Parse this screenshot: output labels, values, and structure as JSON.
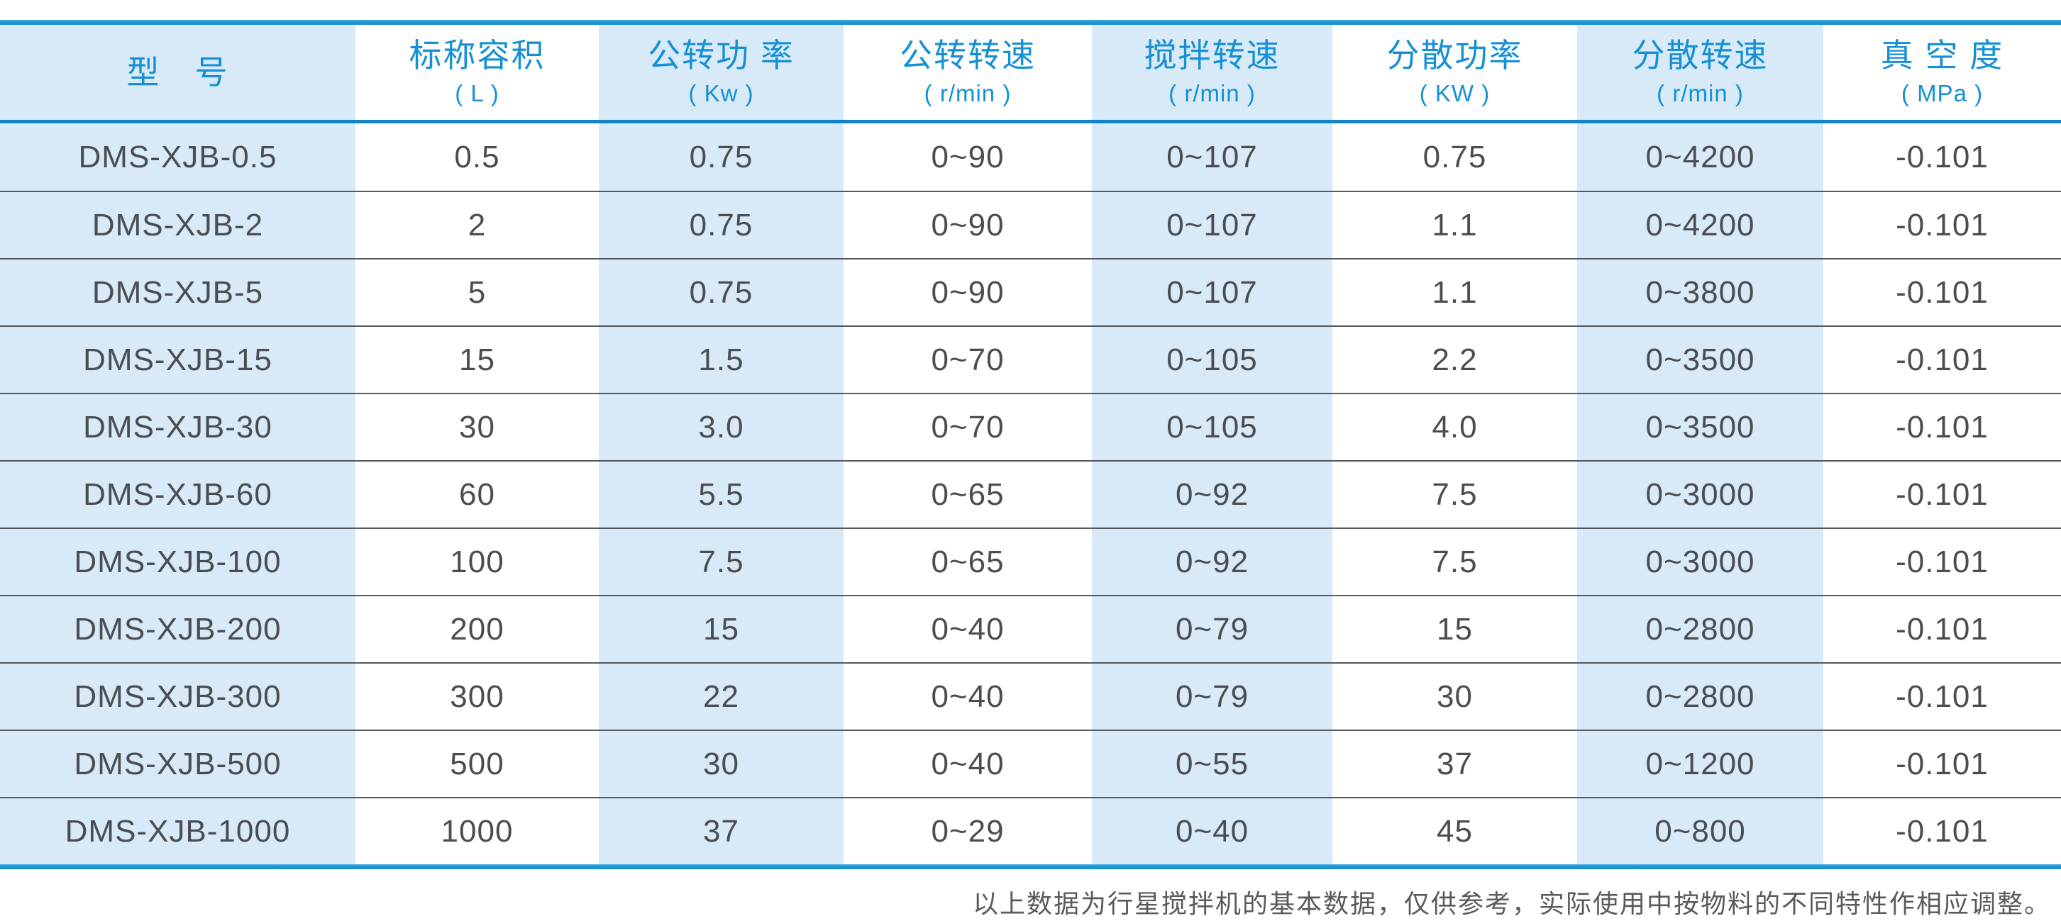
{
  "colors": {
    "accent_blue": "#1d95d3",
    "header_separator_blue": "#1484c8",
    "header_text_blue": "#1590d5",
    "stripe_blue": "#d8eaf8",
    "data_text": "#4a4d52",
    "row_divider": "#55585c",
    "footnote_text": "#595a5c"
  },
  "table": {
    "columns": [
      {
        "label": "型　号",
        "unit": ""
      },
      {
        "label": "标称容积",
        "unit": "( L )"
      },
      {
        "label": "公转功 率",
        "unit": "( Kw )"
      },
      {
        "label": "公转转速",
        "unit": "( r/min )"
      },
      {
        "label": "搅拌转速",
        "unit": "( r/min )"
      },
      {
        "label": "分散功率",
        "unit": "( KW )"
      },
      {
        "label": "分散转速",
        "unit": "( r/min )"
      },
      {
        "label": "真 空 度",
        "unit": "( MPa )"
      }
    ],
    "rows": [
      [
        "DMS-XJB-0.5",
        "0.5",
        "0.75",
        "0~90",
        "0~107",
        "0.75",
        "0~4200",
        "-0.101"
      ],
      [
        "DMS-XJB-2",
        "2",
        "0.75",
        "0~90",
        "0~107",
        "1.1",
        "0~4200",
        "-0.101"
      ],
      [
        "DMS-XJB-5",
        "5",
        "0.75",
        "0~90",
        "0~107",
        "1.1",
        "0~3800",
        "-0.101"
      ],
      [
        "DMS-XJB-15",
        "15",
        "1.5",
        "0~70",
        "0~105",
        "2.2",
        "0~3500",
        "-0.101"
      ],
      [
        "DMS-XJB-30",
        "30",
        "3.0",
        "0~70",
        "0~105",
        "4.0",
        "0~3500",
        "-0.101"
      ],
      [
        "DMS-XJB-60",
        "60",
        "5.5",
        "0~65",
        "0~92",
        "7.5",
        "0~3000",
        "-0.101"
      ],
      [
        "DMS-XJB-100",
        "100",
        "7.5",
        "0~65",
        "0~92",
        "7.5",
        "0~3000",
        "-0.101"
      ],
      [
        "DMS-XJB-200",
        "200",
        "15",
        "0~40",
        "0~79",
        "15",
        "0~2800",
        "-0.101"
      ],
      [
        "DMS-XJB-300",
        "300",
        "22",
        "0~40",
        "0~79",
        "30",
        "0~2800",
        "-0.101"
      ],
      [
        "DMS-XJB-500",
        "500",
        "30",
        "0~40",
        "0~55",
        "37",
        "0~1200",
        "-0.101"
      ],
      [
        "DMS-XJB-1000",
        "1000",
        "37",
        "0~29",
        "0~40",
        "45",
        "0~800",
        "-0.101"
      ]
    ]
  },
  "footnote": "以上数据为行星搅拌机的基本数据，仅供参考，实际使用中按物料的不同特性作相应调整。"
}
